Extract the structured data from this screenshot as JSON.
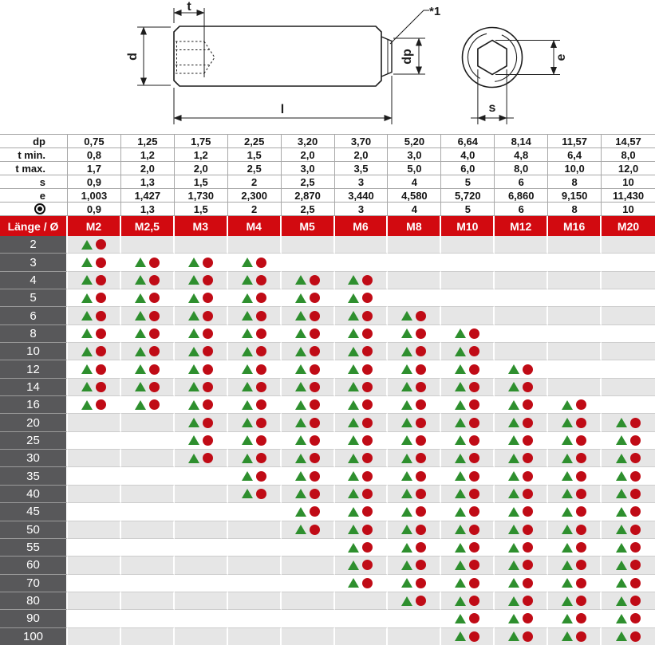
{
  "drawing": {
    "labels": {
      "t": "t",
      "d": "d",
      "l": "l",
      "dp": "dp",
      "e": "e",
      "s": "s",
      "note": "*1"
    }
  },
  "spec": {
    "rows": [
      {
        "label": "dp",
        "values": [
          "0,75",
          "1,25",
          "1,75",
          "2,25",
          "3,20",
          "3,70",
          "5,20",
          "6,64",
          "8,14",
          "11,57",
          "14,57"
        ]
      },
      {
        "label": "t min.",
        "values": [
          "0,8",
          "1,2",
          "1,2",
          "1,5",
          "2,0",
          "2,0",
          "3,0",
          "4,0",
          "4,8",
          "6,4",
          "8,0"
        ]
      },
      {
        "label": "t max.",
        "values": [
          "1,7",
          "2,0",
          "2,0",
          "2,5",
          "3,0",
          "3,5",
          "5,0",
          "6,0",
          "8,0",
          "10,0",
          "12,0"
        ]
      },
      {
        "label": "s",
        "values": [
          "0,9",
          "1,3",
          "1,5",
          "2",
          "2,5",
          "3",
          "4",
          "5",
          "6",
          "8",
          "10"
        ]
      },
      {
        "label": "e",
        "values": [
          "1,003",
          "1,427",
          "1,730",
          "2,300",
          "2,870",
          "3,440",
          "4,580",
          "5,720",
          "6,860",
          "9,150",
          "11,430"
        ]
      },
      {
        "label": "",
        "icon": "bullseye-icon",
        "values": [
          "0,9",
          "1,3",
          "1,5",
          "2",
          "2,5",
          "3",
          "4",
          "5",
          "6",
          "8",
          "10"
        ]
      }
    ]
  },
  "matrix": {
    "corner_label": "Länge / Ø",
    "columns": [
      "M2",
      "M2,5",
      "M3",
      "M4",
      "M5",
      "M6",
      "M8",
      "M10",
      "M12",
      "M16",
      "M20"
    ],
    "rows": [
      {
        "length": "2",
        "available": [
          1,
          0,
          0,
          0,
          0,
          0,
          0,
          0,
          0,
          0,
          0
        ]
      },
      {
        "length": "3",
        "available": [
          1,
          1,
          1,
          1,
          0,
          0,
          0,
          0,
          0,
          0,
          0
        ]
      },
      {
        "length": "4",
        "available": [
          1,
          1,
          1,
          1,
          1,
          1,
          0,
          0,
          0,
          0,
          0
        ]
      },
      {
        "length": "5",
        "available": [
          1,
          1,
          1,
          1,
          1,
          1,
          0,
          0,
          0,
          0,
          0
        ]
      },
      {
        "length": "6",
        "available": [
          1,
          1,
          1,
          1,
          1,
          1,
          1,
          0,
          0,
          0,
          0
        ]
      },
      {
        "length": "8",
        "available": [
          1,
          1,
          1,
          1,
          1,
          1,
          1,
          1,
          0,
          0,
          0
        ]
      },
      {
        "length": "10",
        "available": [
          1,
          1,
          1,
          1,
          1,
          1,
          1,
          1,
          0,
          0,
          0
        ]
      },
      {
        "length": "12",
        "available": [
          1,
          1,
          1,
          1,
          1,
          1,
          1,
          1,
          1,
          0,
          0
        ]
      },
      {
        "length": "14",
        "available": [
          1,
          1,
          1,
          1,
          1,
          1,
          1,
          1,
          1,
          0,
          0
        ]
      },
      {
        "length": "16",
        "available": [
          1,
          1,
          1,
          1,
          1,
          1,
          1,
          1,
          1,
          1,
          0
        ]
      },
      {
        "length": "20",
        "available": [
          0,
          0,
          1,
          1,
          1,
          1,
          1,
          1,
          1,
          1,
          1
        ]
      },
      {
        "length": "25",
        "available": [
          0,
          0,
          1,
          1,
          1,
          1,
          1,
          1,
          1,
          1,
          1
        ]
      },
      {
        "length": "30",
        "available": [
          0,
          0,
          1,
          1,
          1,
          1,
          1,
          1,
          1,
          1,
          1
        ]
      },
      {
        "length": "35",
        "available": [
          0,
          0,
          0,
          1,
          1,
          1,
          1,
          1,
          1,
          1,
          1
        ]
      },
      {
        "length": "40",
        "available": [
          0,
          0,
          0,
          1,
          1,
          1,
          1,
          1,
          1,
          1,
          1
        ]
      },
      {
        "length": "45",
        "available": [
          0,
          0,
          0,
          0,
          1,
          1,
          1,
          1,
          1,
          1,
          1
        ]
      },
      {
        "length": "50",
        "available": [
          0,
          0,
          0,
          0,
          1,
          1,
          1,
          1,
          1,
          1,
          1
        ]
      },
      {
        "length": "55",
        "available": [
          0,
          0,
          0,
          0,
          0,
          1,
          1,
          1,
          1,
          1,
          1
        ]
      },
      {
        "length": "60",
        "available": [
          0,
          0,
          0,
          0,
          0,
          1,
          1,
          1,
          1,
          1,
          1
        ]
      },
      {
        "length": "70",
        "available": [
          0,
          0,
          0,
          0,
          0,
          1,
          1,
          1,
          1,
          1,
          1
        ]
      },
      {
        "length": "80",
        "available": [
          0,
          0,
          0,
          0,
          0,
          0,
          1,
          1,
          1,
          1,
          1
        ]
      },
      {
        "length": "90",
        "available": [
          0,
          0,
          0,
          0,
          0,
          0,
          0,
          1,
          1,
          1,
          1
        ]
      },
      {
        "length": "100",
        "available": [
          0,
          0,
          0,
          0,
          0,
          0,
          0,
          1,
          1,
          1,
          1
        ]
      }
    ]
  },
  "colors": {
    "header_red": "#d20a10",
    "row_label_gray": "#58585a",
    "alt_row_gray": "#e6e6e6",
    "gridline": "#a8a8a8",
    "marker_green": "#2e8f2e",
    "marker_red": "#c00b16",
    "line_dark": "#1d1d1d"
  }
}
